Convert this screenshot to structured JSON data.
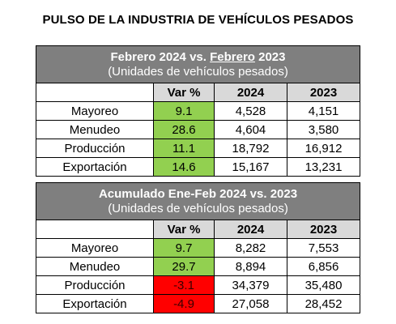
{
  "title": "PULSO DE LA INDUSTRIA DE VEHÍCULOS PESADOS",
  "tables": [
    {
      "heading_pre": "Febrero 2024 vs. ",
      "heading_underlined": "Febrero",
      "heading_post": " 2023",
      "subheading": "(Unidades de vehículos pesados)",
      "columns": [
        "Var %",
        "2024",
        "2023"
      ],
      "rows": [
        {
          "label": "Mayoreo",
          "var": "9.1",
          "y2024": "4,528",
          "y2023": "4,151",
          "status": "positive"
        },
        {
          "label": "Menudeo",
          "var": "28.6",
          "y2024": "4,604",
          "y2023": "3,580",
          "status": "positive"
        },
        {
          "label": "Producción",
          "var": "11.1",
          "y2024": "18,792",
          "y2023": "16,912",
          "status": "positive"
        },
        {
          "label": "Exportación",
          "var": "14.6",
          "y2024": "15,167",
          "y2023": "13,231",
          "status": "positive"
        }
      ]
    },
    {
      "heading_pre": "Acumulado Ene-Feb 2024 vs. 2023",
      "heading_underlined": "",
      "heading_post": "",
      "subheading": "(Unidades de vehículos pesados)",
      "columns": [
        "Var %",
        "2024",
        "2023"
      ],
      "rows": [
        {
          "label": "Mayoreo",
          "var": "9.7",
          "y2024": "8,282",
          "y2023": "7,553",
          "status": "positive"
        },
        {
          "label": "Menudeo",
          "var": "29.7",
          "y2024": "8,894",
          "y2023": "6,856",
          "status": "positive"
        },
        {
          "label": "Producción",
          "var": "-3.1",
          "y2024": "34,379",
          "y2023": "35,480",
          "status": "negative"
        },
        {
          "label": "Exportación",
          "var": "-4.9",
          "y2024": "27,058",
          "y2023": "28,452",
          "status": "negative"
        }
      ]
    }
  ],
  "colors": {
    "header_bg": "#7f7f7f",
    "column_header_bg": "#d9d9d9",
    "positive": "#92d050",
    "negative": "#ff0000"
  }
}
